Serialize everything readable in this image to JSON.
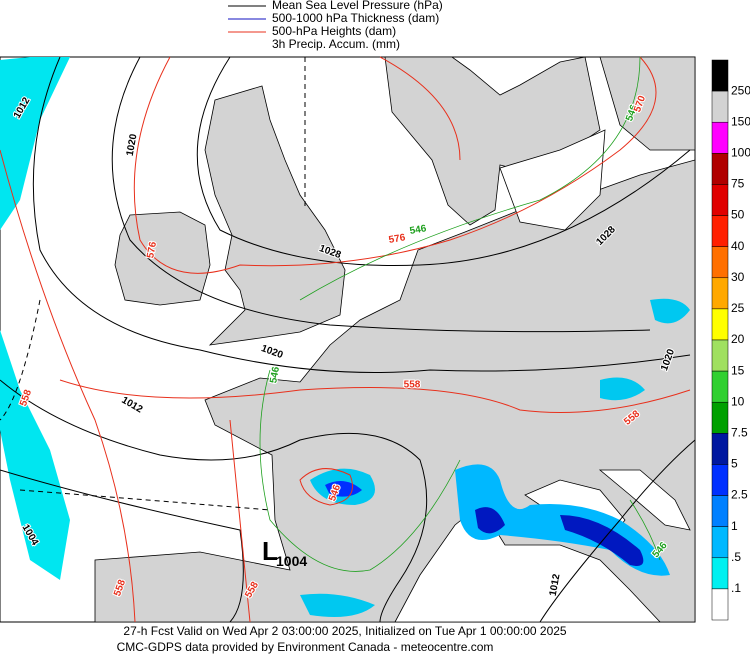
{
  "legend": [
    {
      "label": "Mean Sea Level Pressure (hPa)",
      "color": "#000000"
    },
    {
      "label": "500-1000 hPa Thickness (dam)",
      "color": "#1010c0"
    },
    {
      "label": "500-hPa Heights (dam)",
      "color": "#e8301c"
    },
    {
      "label": "3h Precip. Accum. (mm)",
      "color": null
    }
  ],
  "colorbar": {
    "labels": [
      "250",
      "150",
      "100",
      "75",
      "50",
      "40",
      "30",
      "25",
      "20",
      "15",
      "10",
      "7.5",
      "5",
      "2.5",
      "1",
      ".5",
      ".1"
    ],
    "colors": [
      "#000000",
      "#d3d3d3",
      "#ff00ff",
      "#b00000",
      "#e00000",
      "#ff2000",
      "#ff7000",
      "#ffa800",
      "#ffff00",
      "#a0e060",
      "#30d030",
      "#00a000",
      "#0018a0",
      "#0030ff",
      "#0080ff",
      "#00b8ff",
      "#00f0f0",
      "#ffffff"
    ]
  },
  "contour_labels": [
    {
      "text": "1012",
      "color": "#000000"
    },
    {
      "text": "1020",
      "color": "#000000"
    },
    {
      "text": "576",
      "color": "#e8301c"
    },
    {
      "text": "1028",
      "color": "#000000"
    },
    {
      "text": "576",
      "color": "#e8301c"
    },
    {
      "text": "546",
      "color": "#1fa01f"
    },
    {
      "text": "1028",
      "color": "#000000"
    },
    {
      "text": "546",
      "color": "#1fa01f"
    },
    {
      "text": "570",
      "color": "#e8301c"
    },
    {
      "text": "1020",
      "color": "#000000"
    },
    {
      "text": "1012",
      "color": "#000000"
    },
    {
      "text": "546",
      "color": "#1fa01f"
    },
    {
      "text": "558",
      "color": "#e8301c"
    },
    {
      "text": "558",
      "color": "#e8301c"
    },
    {
      "text": "1020",
      "color": "#000000"
    },
    {
      "text": "558",
      "color": "#e8301c"
    },
    {
      "text": "546",
      "color": "#e8301c"
    },
    {
      "text": "1004",
      "color": "#000000"
    },
    {
      "text": "558",
      "color": "#e8301c"
    },
    {
      "text": "558",
      "color": "#e8301c"
    },
    {
      "text": "1012",
      "color": "#000000"
    },
    {
      "text": "546",
      "color": "#1fa01f"
    }
  ],
  "low": {
    "symbol": "L",
    "pressure": "1004"
  },
  "footer": [
    "27-h Fcst Valid on Wed Apr  2 03:00:00 2025, Initialized on Tue Apr  1 00:00:00 2025",
    "CMC-GDPS data provided by Environment Canada - meteocentre.com"
  ]
}
